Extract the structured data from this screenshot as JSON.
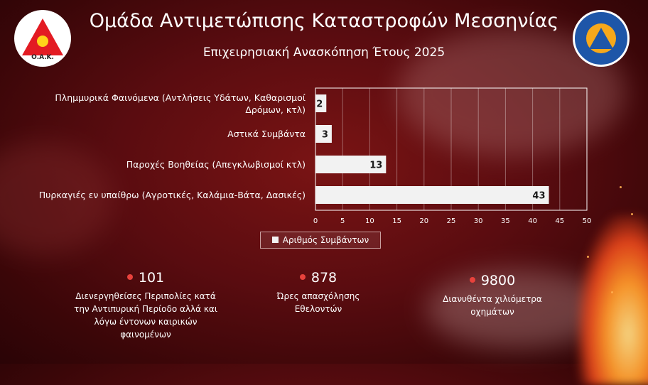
{
  "header": {
    "title": "Ομάδα Αντιμετώπισης Καταστροφών Μεσσηνίας",
    "subtitle": "Επιχειρησιακή Ανασκόπηση Έτους 2025"
  },
  "logos": {
    "left": {
      "icon": "oak-messinias-logo",
      "text": "Ο.Α.Κ."
    },
    "right": {
      "icon": "civil-protection-logo"
    }
  },
  "chart_data": {
    "type": "bar",
    "orientation": "horizontal",
    "categories": [
      "Πλημμυρικά Φαινόμενα (Αντλήσεις Υδάτων, Καθαρισμοί Δρόμων, κτλ)",
      "Αστικά Συμβάντα",
      "Παροχές Βοηθείας (Απεγκλωβισμοί κτλ)",
      "Πυρκαγιές εν υπαίθρω (Αγροτικές, Καλάμια-Βάτα, Δασικές)"
    ],
    "category_lines": [
      [
        "Πλημμυρικά Φαινόμενα (Αντλήσεις Υδάτων, Καθαρισμοί",
        "Δρόμων, κτλ)"
      ],
      [
        "Αστικά Συμβάντα"
      ],
      [
        "Παροχές Βοηθείας (Απεγκλωβισμοί κτλ)"
      ],
      [
        "Πυρκαγιές εν υπαίθρω (Αγροτικές, Καλάμια-Βάτα, Δασικές)"
      ]
    ],
    "series": [
      {
        "name": "Αριθμός Συμβάντων",
        "values": [
          2,
          3,
          13,
          43
        ]
      }
    ],
    "xlim": [
      0,
      50
    ],
    "xticks": [
      0,
      5,
      10,
      15,
      20,
      25,
      30,
      35,
      40,
      45,
      50
    ],
    "legend": "bottom",
    "grid": true,
    "bar_color": "#f2f2f2",
    "label_color": "#1a1a1a"
  },
  "stats": [
    {
      "value": "101",
      "label": "Διενεργηθείσες Περιπολίες κατά την Αντιπυρική Περίοδο αλλά και λόγω έντονων καιρικών φαινομένων",
      "lines": [
        "Διενεργηθείσες Περιπολίες κατά",
        "την Αντιπυρική Περίοδο αλλά και",
        "λόγω έντονων καιρικών",
        "φαινομένων"
      ]
    },
    {
      "value": "878",
      "label": "Ώρες απασχόλησης Εθελοντών",
      "lines": [
        "Ώρες απασχόλησης",
        "Εθελοντών"
      ]
    },
    {
      "value": "9800",
      "label": "Διανυθέντα χιλιόμετρα οχημάτων",
      "lines": [
        "Διανυθέντα χιλιόμετρα",
        "οχημάτων"
      ]
    }
  ],
  "colors": {
    "accent_dot": "#e8423c",
    "background": "#5a0c10"
  }
}
